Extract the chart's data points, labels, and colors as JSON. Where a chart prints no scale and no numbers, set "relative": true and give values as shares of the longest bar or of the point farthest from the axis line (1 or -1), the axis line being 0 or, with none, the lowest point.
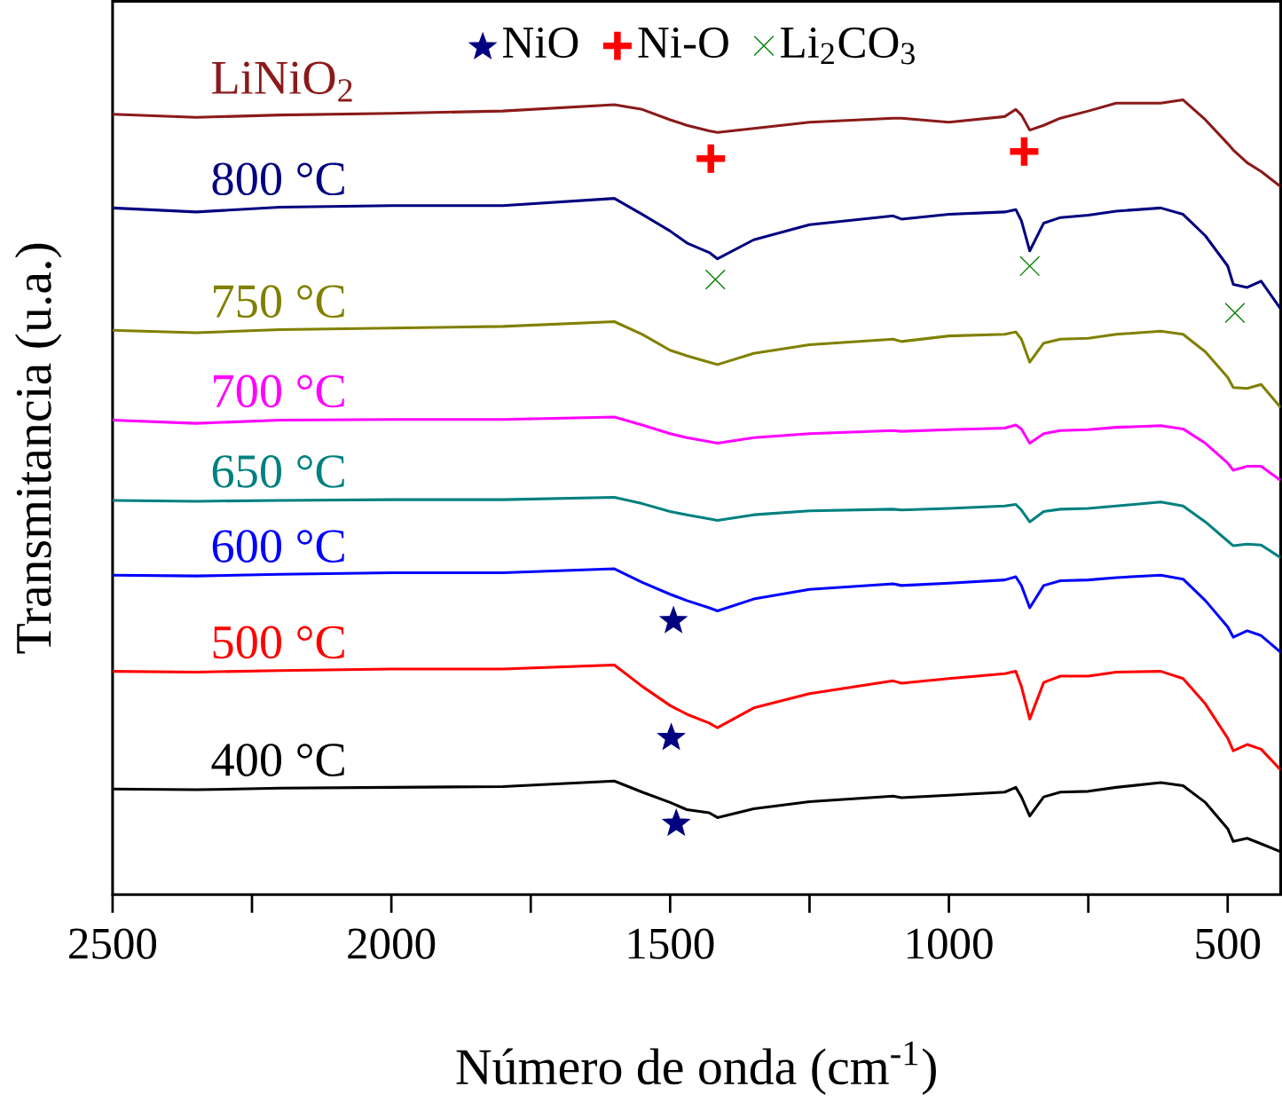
{
  "chart_data": {
    "type": "line",
    "relative": true,
    "xlabel": "Número de onda (cm$^{-1}$)",
    "ylabel": "Transmitancia (u.a.)",
    "xlim": [
      2500,
      405
    ],
    "xticks": [
      2500,
      2000,
      1500,
      1000,
      500
    ],
    "legend": "top",
    "line_style": "solid",
    "x": [
      2500,
      2350,
      2200,
      2000,
      1800,
      1600,
      1550,
      1500,
      1470,
      1430,
      1415,
      1350,
      1250,
      1100,
      1085,
      1000,
      900,
      880,
      870,
      855,
      830,
      800,
      750,
      700,
      620,
      580,
      540,
      500,
      490,
      465,
      440,
      405
    ],
    "series": [
      {
        "name": "LiNiO$_{2}$",
        "color": "#8b1a1a",
        "values": [
          0.982,
          0.978,
          0.981,
          0.983,
          0.986,
          0.994,
          0.988,
          0.975,
          0.968,
          0.961,
          0.959,
          0.964,
          0.972,
          0.977,
          0.977,
          0.972,
          0.979,
          0.988,
          0.981,
          0.962,
          0.968,
          0.977,
          0.986,
          0.996,
          0.996,
          1.0,
          0.975,
          0.945,
          0.937,
          0.921,
          0.91,
          0.891
        ]
      },
      {
        "name": "800 °C",
        "color": "#000080",
        "values": [
          0.864,
          0.859,
          0.865,
          0.867,
          0.867,
          0.876,
          0.856,
          0.835,
          0.82,
          0.808,
          0.8,
          0.824,
          0.843,
          0.854,
          0.85,
          0.856,
          0.859,
          0.862,
          0.848,
          0.81,
          0.845,
          0.852,
          0.855,
          0.86,
          0.864,
          0.856,
          0.829,
          0.791,
          0.768,
          0.764,
          0.772,
          0.737
        ]
      },
      {
        "name": "750 °C",
        "color": "#808000",
        "values": [
          0.71,
          0.707,
          0.711,
          0.713,
          0.715,
          0.721,
          0.705,
          0.685,
          0.678,
          0.67,
          0.667,
          0.681,
          0.692,
          0.699,
          0.696,
          0.703,
          0.705,
          0.708,
          0.699,
          0.67,
          0.694,
          0.699,
          0.7,
          0.705,
          0.709,
          0.705,
          0.683,
          0.651,
          0.638,
          0.637,
          0.642,
          0.613
        ]
      },
      {
        "name": "700 °C",
        "color": "#ff00ff",
        "values": [
          0.597,
          0.593,
          0.597,
          0.598,
          0.598,
          0.601,
          0.591,
          0.58,
          0.575,
          0.57,
          0.568,
          0.575,
          0.58,
          0.584,
          0.583,
          0.585,
          0.587,
          0.591,
          0.586,
          0.568,
          0.58,
          0.584,
          0.585,
          0.588,
          0.59,
          0.586,
          0.568,
          0.543,
          0.534,
          0.539,
          0.539,
          0.521
        ]
      },
      {
        "name": "650 °C",
        "color": "#008080",
        "values": [
          0.496,
          0.495,
          0.496,
          0.497,
          0.497,
          0.5,
          0.492,
          0.482,
          0.478,
          0.473,
          0.471,
          0.478,
          0.483,
          0.485,
          0.484,
          0.486,
          0.489,
          0.491,
          0.484,
          0.469,
          0.482,
          0.485,
          0.486,
          0.489,
          0.494,
          0.489,
          0.469,
          0.445,
          0.439,
          0.441,
          0.44,
          0.424
        ]
      },
      {
        "name": "600 °C",
        "color": "#0000ff",
        "values": [
          0.402,
          0.401,
          0.403,
          0.405,
          0.405,
          0.41,
          0.393,
          0.378,
          0.37,
          0.361,
          0.357,
          0.372,
          0.384,
          0.391,
          0.389,
          0.392,
          0.396,
          0.4,
          0.389,
          0.361,
          0.389,
          0.395,
          0.396,
          0.399,
          0.402,
          0.397,
          0.37,
          0.337,
          0.324,
          0.332,
          0.326,
          0.305
        ]
      },
      {
        "name": "500 °C",
        "color": "#ff0000",
        "values": [
          0.281,
          0.28,
          0.282,
          0.284,
          0.284,
          0.289,
          0.262,
          0.238,
          0.227,
          0.216,
          0.21,
          0.235,
          0.253,
          0.269,
          0.266,
          0.272,
          0.278,
          0.281,
          0.262,
          0.221,
          0.267,
          0.275,
          0.275,
          0.28,
          0.281,
          0.272,
          0.24,
          0.197,
          0.181,
          0.189,
          0.183,
          0.157
        ]
      },
      {
        "name": "400 °C",
        "color": "#000000",
        "values": [
          0.133,
          0.132,
          0.134,
          0.135,
          0.136,
          0.143,
          0.129,
          0.116,
          0.107,
          0.103,
          0.097,
          0.108,
          0.117,
          0.124,
          0.122,
          0.125,
          0.129,
          0.135,
          0.123,
          0.099,
          0.123,
          0.129,
          0.13,
          0.135,
          0.141,
          0.137,
          0.116,
          0.083,
          0.067,
          0.071,
          0.064,
          0.054
        ]
      },
      {
        "name": "NiO",
        "type": "scatter",
        "marker": "star",
        "color": "#000080",
        "x": [
          1494,
          1498,
          1489
        ],
        "values": [
          0.346,
          0.199,
          0.091
        ]
      },
      {
        "name": "Ni-O",
        "type": "scatter",
        "color": "#ff0000",
        "x": [
          1427,
          865
        ],
        "values": [
          0.926,
          0.935
        ]
      },
      {
        "name": "Li$_{2}$CO$_{3}$",
        "type": "scatter",
        "marker": "cross",
        "color": "#008000",
        "x": [
          1419,
          855,
          487
        ],
        "values": [
          0.774,
          0.791,
          0.732
        ]
      }
    ]
  }
}
